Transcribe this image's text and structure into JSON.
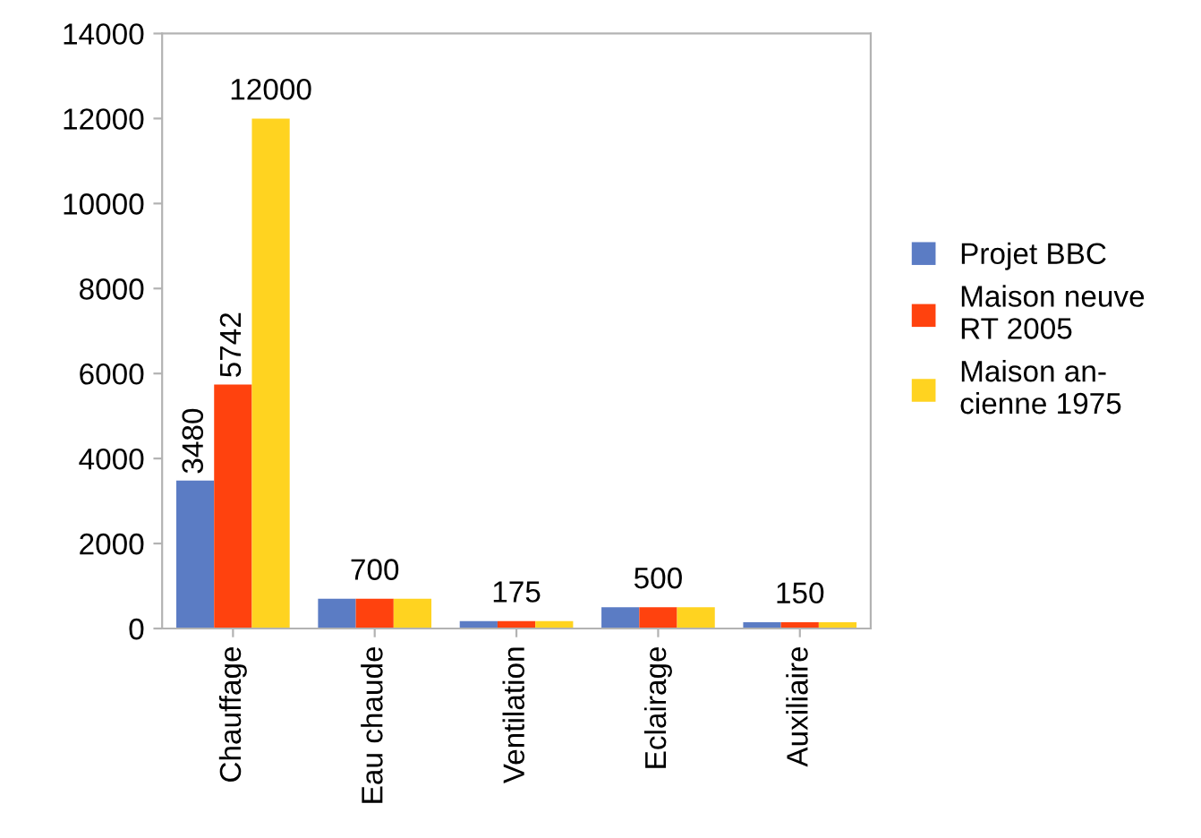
{
  "chart_data": {
    "type": "bar",
    "categories": [
      "Chauffage",
      "Eau chaude",
      "Ventilation",
      "Eclairage",
      "Auxiliaire"
    ],
    "series": [
      {
        "name": "Projet BBC",
        "color": "#5b7cc4",
        "values": [
          3480,
          700,
          175,
          500,
          150
        ],
        "value_labels": [
          "3480",
          null,
          null,
          null,
          null
        ]
      },
      {
        "name": "Maison neuve\nRT 2005",
        "color": "#ff420e",
        "values": [
          5742,
          700,
          175,
          500,
          150
        ],
        "value_labels": [
          "5742",
          "700",
          "175",
          "500",
          "150"
        ]
      },
      {
        "name": "Maison an-\ncienne 1975",
        "color": "#ffd320",
        "values": [
          12000,
          700,
          175,
          500,
          150
        ],
        "value_labels": [
          "12000",
          null,
          null,
          null,
          null
        ]
      }
    ],
    "ylim": [
      0,
      14000
    ],
    "yticks": [
      0,
      2000,
      4000,
      6000,
      8000,
      10000,
      12000,
      14000
    ],
    "grid": false,
    "legend": "right"
  }
}
